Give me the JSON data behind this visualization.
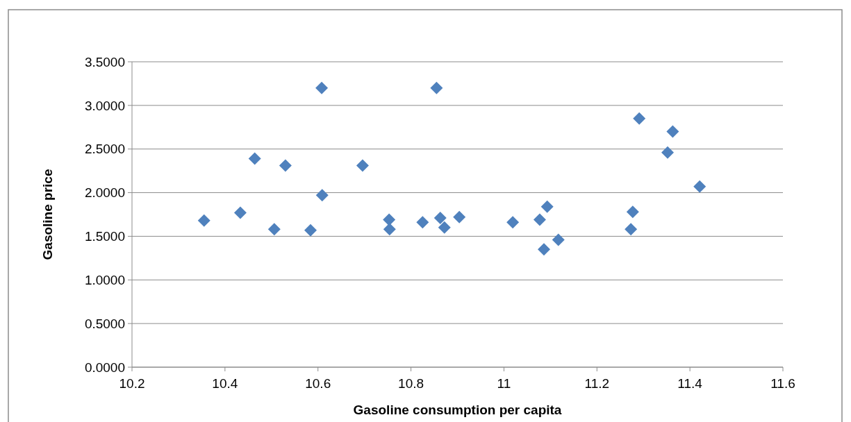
{
  "chart_data": {
    "type": "scatter",
    "xlabel": "Gasoline consumption per capita",
    "ylabel": "Gasoline price",
    "x": [
      10.355,
      10.433,
      10.464,
      10.506,
      10.53,
      10.584,
      10.608,
      10.609,
      10.696,
      10.753,
      10.754,
      10.825,
      10.855,
      10.863,
      10.872,
      10.904,
      11.019,
      11.077,
      11.086,
      11.093,
      11.117,
      11.273,
      11.277,
      11.291,
      11.352,
      11.363,
      11.421
    ],
    "series": [
      {
        "color": "#4f81bd",
        "values": [
          1.68,
          1.77,
          2.39,
          1.58,
          2.31,
          1.57,
          3.2,
          1.97,
          2.31,
          1.69,
          1.58,
          1.66,
          3.2,
          1.71,
          1.6,
          1.72,
          1.66,
          1.69,
          1.35,
          1.84,
          1.46,
          1.58,
          1.78,
          2.85,
          2.46,
          2.7,
          2.07
        ]
      }
    ],
    "xlim": [
      10.2,
      11.6
    ],
    "xticks": [
      10.2,
      10.4,
      10.6,
      10.8,
      11,
      11.2,
      11.4,
      11.6
    ],
    "ylim": [
      0,
      3.5
    ],
    "yticks": [
      {
        "value": 0,
        "label": "0.0000"
      },
      {
        "value": 0.5,
        "label": "0.5000"
      },
      {
        "value": 1,
        "label": "1.0000"
      },
      {
        "value": 1.5,
        "label": "1.5000"
      },
      {
        "value": 2,
        "label": "2.0000"
      },
      {
        "value": 2.5,
        "label": "2.5000"
      },
      {
        "value": 3,
        "label": "3.0000"
      },
      {
        "value": 3.5,
        "label": "3.5000"
      }
    ],
    "grid": "y",
    "marker": "diamond"
  }
}
